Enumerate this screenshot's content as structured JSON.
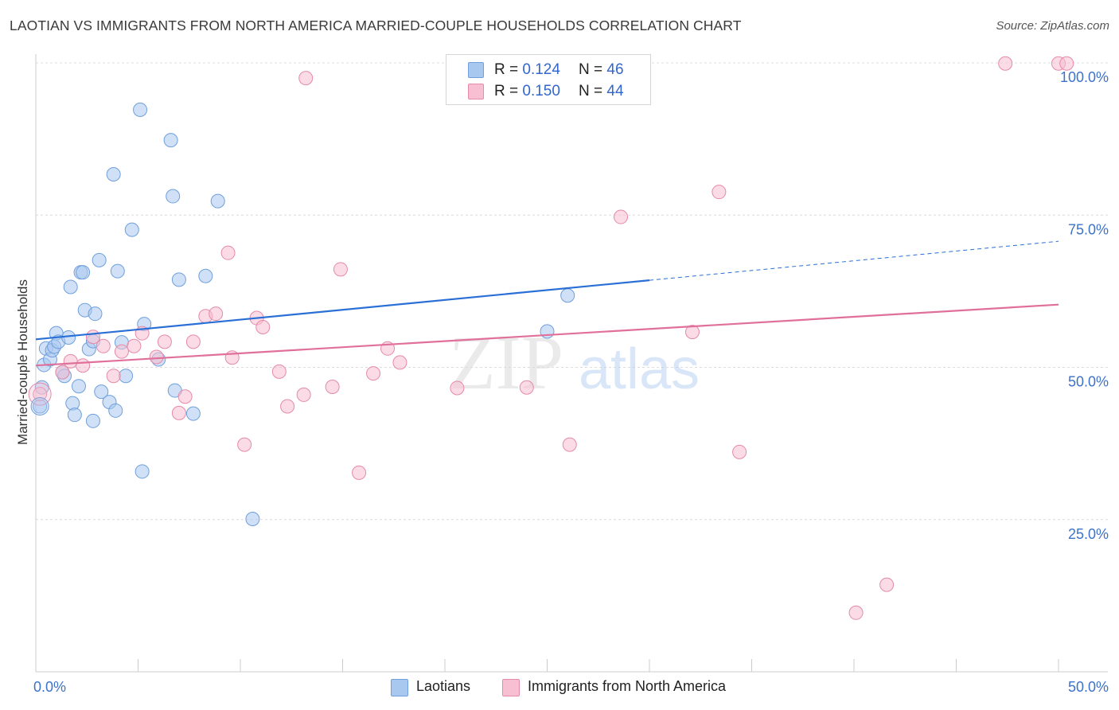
{
  "title": "LAOTIAN VS IMMIGRANTS FROM NORTH AMERICA MARRIED-COUPLE HOUSEHOLDS CORRELATION CHART",
  "source": "Source: ZipAtlas.com",
  "watermark": {
    "zip": "ZIP",
    "atlas": "atlas"
  },
  "legend": {
    "rows": [
      {
        "r_label": "R =",
        "r_value": "0.124",
        "n_label": "N =",
        "n_value": "46",
        "color": "#a9c8f0",
        "border": "#6f9fdc"
      },
      {
        "r_label": "R =",
        "r_value": "0.150",
        "n_label": "N =",
        "n_value": "44",
        "color": "#f7bfd1",
        "border": "#e58aa9"
      }
    ]
  },
  "bottom_legend": [
    "Laotians",
    "Immigrants from North America"
  ],
  "chart_data": {
    "type": "scatter",
    "title": "LAOTIAN VS IMMIGRANTS FROM NORTH AMERICA MARRIED-COUPLE HOUSEHOLDS CORRELATION CHART",
    "xlabel": "",
    "ylabel": "Married-couple Households",
    "xlim": [
      0,
      50
    ],
    "ylim": [
      0,
      100
    ],
    "x_tick_labels": [
      "0.0%",
      "50.0%"
    ],
    "y_tick_labels": [
      "25.0%",
      "50.0%",
      "75.0%",
      "100.0%"
    ],
    "y_ticks": [
      25,
      50,
      75,
      100
    ],
    "grid": true,
    "legend_position": "top-center",
    "series": [
      {
        "name": "Laotians",
        "color": "#a9c8f0",
        "line_color": "#2a6fd6",
        "R": 0.124,
        "N": 46,
        "trend": {
          "x0": 0,
          "y0": 54.6,
          "x1": 30.0,
          "y1": 64.3,
          "dash_to_x": 50,
          "dash_to_y": 70.7
        },
        "points": [
          [
            0.2,
            43.6
          ],
          [
            0.3,
            46.7
          ],
          [
            0.4,
            50.4
          ],
          [
            0.5,
            53.1
          ],
          [
            0.7,
            51.3
          ],
          [
            0.8,
            52.8
          ],
          [
            0.9,
            53.4
          ],
          [
            1.0,
            55.6
          ],
          [
            1.1,
            54.2
          ],
          [
            1.3,
            49.2
          ],
          [
            1.4,
            48.6
          ],
          [
            1.6,
            54.9
          ],
          [
            1.7,
            63.2
          ],
          [
            1.8,
            44.1
          ],
          [
            1.9,
            42.2
          ],
          [
            2.1,
            46.9
          ],
          [
            2.2,
            65.6
          ],
          [
            2.3,
            65.6
          ],
          [
            2.4,
            59.4
          ],
          [
            2.6,
            53.0
          ],
          [
            2.8,
            54.3
          ],
          [
            2.8,
            41.2
          ],
          [
            2.9,
            58.8
          ],
          [
            3.1,
            67.6
          ],
          [
            3.2,
            46.0
          ],
          [
            3.6,
            44.3
          ],
          [
            3.8,
            81.7
          ],
          [
            3.9,
            42.9
          ],
          [
            4.0,
            65.8
          ],
          [
            4.2,
            54.1
          ],
          [
            4.4,
            48.6
          ],
          [
            4.7,
            72.6
          ],
          [
            5.1,
            92.3
          ],
          [
            5.2,
            32.9
          ],
          [
            5.3,
            57.1
          ],
          [
            6.0,
            51.3
          ],
          [
            6.6,
            87.3
          ],
          [
            6.7,
            78.1
          ],
          [
            6.8,
            46.2
          ],
          [
            7.0,
            64.4
          ],
          [
            7.7,
            42.4
          ],
          [
            8.3,
            65.0
          ],
          [
            8.9,
            77.3
          ],
          [
            10.6,
            25.1
          ],
          [
            25.0,
            55.9
          ],
          [
            26.0,
            61.8
          ]
        ]
      },
      {
        "name": "Immigrants from North America",
        "color": "#f7bfd1",
        "line_color": "#e0709a",
        "R": 0.15,
        "N": 44,
        "trend": {
          "x0": 0,
          "y0": 50.3,
          "x1": 50,
          "y1": 60.3
        },
        "points": [
          [
            0.2,
            45.6
          ],
          [
            1.3,
            49.2
          ],
          [
            1.7,
            51.0
          ],
          [
            2.3,
            50.3
          ],
          [
            2.8,
            55.0
          ],
          [
            3.3,
            53.5
          ],
          [
            3.8,
            48.6
          ],
          [
            4.2,
            52.6
          ],
          [
            4.8,
            53.5
          ],
          [
            5.2,
            55.6
          ],
          [
            5.9,
            51.7
          ],
          [
            6.3,
            54.2
          ],
          [
            7.0,
            42.5
          ],
          [
            7.3,
            45.2
          ],
          [
            7.7,
            54.2
          ],
          [
            8.3,
            58.4
          ],
          [
            8.8,
            58.8
          ],
          [
            9.4,
            68.8
          ],
          [
            9.6,
            51.6
          ],
          [
            10.2,
            37.3
          ],
          [
            10.8,
            58.1
          ],
          [
            11.1,
            56.6
          ],
          [
            11.9,
            49.3
          ],
          [
            12.3,
            43.6
          ],
          [
            13.1,
            45.5
          ],
          [
            13.2,
            97.5
          ],
          [
            14.5,
            46.8
          ],
          [
            14.9,
            66.1
          ],
          [
            15.8,
            32.7
          ],
          [
            16.5,
            49.0
          ],
          [
            17.2,
            53.1
          ],
          [
            17.8,
            50.8
          ],
          [
            20.6,
            46.6
          ],
          [
            24.0,
            46.7
          ],
          [
            26.1,
            37.3
          ],
          [
            28.6,
            74.7
          ],
          [
            32.1,
            55.8
          ],
          [
            33.4,
            78.8
          ],
          [
            34.4,
            36.1
          ],
          [
            40.1,
            9.7
          ],
          [
            41.6,
            14.3
          ],
          [
            47.4,
            99.9
          ],
          [
            50.0,
            99.9
          ],
          [
            50.4,
            99.9
          ]
        ]
      }
    ]
  }
}
